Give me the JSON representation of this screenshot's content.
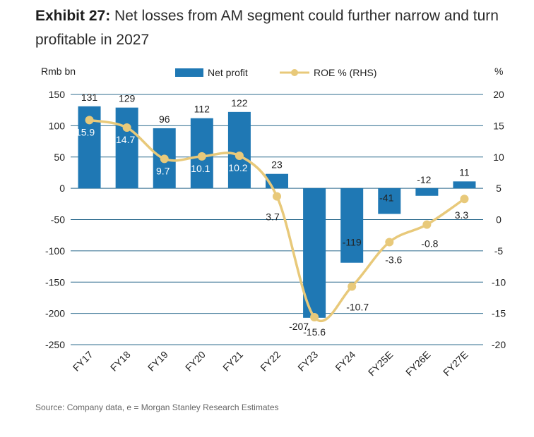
{
  "header": {
    "exhibit_label": "Exhibit 27:",
    "title_text": "Net losses from AM segment could further narrow and turn profitable in 2027"
  },
  "footer": {
    "source": "Source: Company data, e = Morgan Stanley Research Estimates"
  },
  "colors": {
    "bar": "#1f78b4",
    "line": "#e8c97a",
    "grid": "#2d6b8e"
  },
  "chart_data": {
    "type": "bar",
    "categories": [
      "FY17",
      "FY18",
      "FY19",
      "FY20",
      "FY21",
      "FY22",
      "FY23",
      "FY24",
      "FY25E",
      "FY26E",
      "FY27E"
    ],
    "series": [
      {
        "name": "Net profit",
        "type": "bar",
        "axis": "left",
        "values": [
          131,
          129,
          96,
          112,
          122,
          23,
          -207,
          -119,
          -41,
          -12,
          11
        ],
        "labels": [
          "131",
          "129",
          "96",
          "112",
          "122",
          "23",
          "-207",
          "-119",
          "-41",
          "-12",
          "11"
        ]
      },
      {
        "name": "ROE % (RHS)",
        "type": "line",
        "axis": "right",
        "values": [
          15.9,
          14.7,
          9.7,
          10.1,
          10.2,
          3.7,
          -15.6,
          -10.7,
          -3.6,
          -0.8,
          3.3
        ],
        "labels": [
          "15.9",
          "14.7",
          "9.7",
          "10.1",
          "10.2",
          "3.7",
          "-15.6",
          "-10.7",
          "-3.6",
          "-0.8",
          "3.3"
        ]
      }
    ],
    "ylabel_left": "Rmb bn",
    "ylabel_right": "%",
    "ylim_left": [
      -250,
      150
    ],
    "yticks_left": [
      "150",
      "100",
      "50",
      "0",
      "-50",
      "-100",
      "-150",
      "-200",
      "-250"
    ],
    "ylim_right": [
      -20,
      20
    ],
    "yticks_right": [
      "20",
      "15",
      "10",
      "5",
      "0",
      "-5",
      "-10",
      "-15",
      "-20"
    ],
    "grid": true,
    "legend": "top"
  }
}
